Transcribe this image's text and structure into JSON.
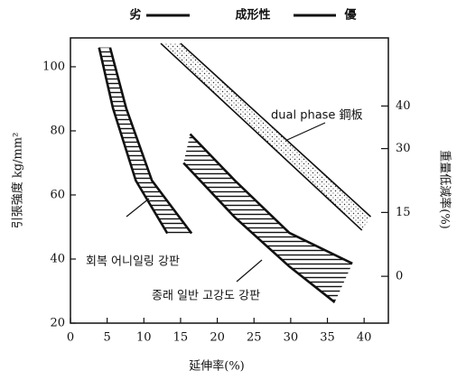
{
  "chart_data": {
    "type": "band",
    "scale_label": {
      "low": "劣",
      "title": "成形性",
      "high": "優"
    },
    "x_label": "延伸率(%)",
    "y_label": "引張強度 kg/mm²",
    "y2_label": "重量低減率(%)",
    "xlim": [
      0,
      43.3
    ],
    "xticks": [
      0,
      5,
      10,
      15,
      20,
      25,
      30,
      35,
      40
    ],
    "ylim": [
      20,
      109
    ],
    "yticks": [
      20,
      40,
      60,
      80,
      100
    ],
    "y2lim": [
      -11,
      56
    ],
    "y2ticks": [
      0,
      15,
      30,
      40
    ],
    "color": "#111111",
    "series": [
      {
        "name": "회복 어니일링 강판",
        "fill": "hatch",
        "edges": [
          {
            "x": [
              3.9,
              5.8,
              8.9,
              13.2
            ],
            "values": [
              106,
              87,
              64.5,
              48
            ]
          },
          {
            "x": [
              5.4,
              7.6,
              11.1,
              16.5
            ],
            "values": [
              106,
              87,
              64.5,
              48
            ]
          }
        ]
      },
      {
        "name": "종래 일반 고강도 강판",
        "fill": "hatch",
        "edges": [
          {
            "x": [
              16.3,
              22.4,
              29.8,
              38.4
            ],
            "values": [
              79,
              64.5,
              48.2,
              38.6
            ]
          },
          {
            "x": [
              15.4,
              22.4,
              29.8,
              36
            ],
            "values": [
              70,
              53,
              37.7,
              26.5
            ]
          }
        ]
      },
      {
        "name": "dual phase 鋼板",
        "fill": "dots",
        "edges": [
          {
            "x": [
              12.3,
              39.7
            ],
            "values": [
              107.3,
              49
            ]
          },
          {
            "x": [
              15,
              40.9
            ],
            "values": [
              107.3,
              53.2
            ]
          }
        ]
      }
    ]
  }
}
